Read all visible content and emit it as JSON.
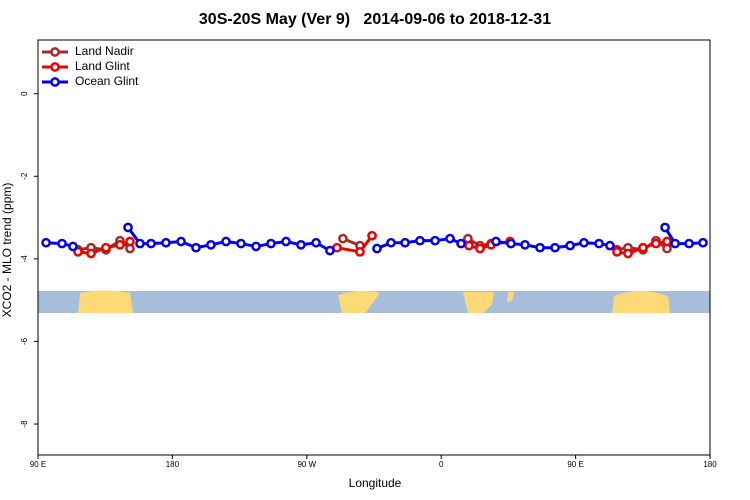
{
  "chart_data": {
    "type": "line",
    "title": "30S-20S May (Ver 9)   2014-09-06 to 2018-12-31",
    "xlabel": "Longitude",
    "ylabel": "XCO2 - MLO trend (ppm)",
    "xlim": [
      90,
      540
    ],
    "ylim": [
      -8.75,
      1.3
    ],
    "xticks": [
      {
        "value": 90,
        "label": "90 E"
      },
      180,
      {
        "value": 270,
        "label": "90 W"
      },
      {
        "value": 360,
        "label": "0"
      },
      {
        "value": 450,
        "label": "90 E"
      },
      {
        "value": 540,
        "label": "180"
      }
    ],
    "yticks": [
      -8,
      -6,
      -4,
      -2,
      0
    ],
    "legend": "top-left",
    "series": [
      {
        "name": "Land Nadir",
        "color": "#a52a2a",
        "x": [
          116.8,
          125.5,
          135.5,
          144.9,
          151.6,
          null,
          294.2,
          305.6,
          null,
          377.9,
          386.0,
          393.4,
          null,
          477.7,
          485.1,
          495.1,
          503.8,
          511.2
        ],
        "values": [
          -3.78,
          -3.73,
          -3.78,
          -3.56,
          -3.75,
          null,
          -3.51,
          -3.68,
          null,
          -3.51,
          -3.68,
          -3.63,
          null,
          -3.78,
          -3.73,
          -3.78,
          -3.56,
          -3.75
        ]
      },
      {
        "name": "Land Glint",
        "color": "#ee0000",
        "x": [
          116.8,
          125.5,
          135.5,
          144.9,
          151.6,
          null,
          290.2,
          305.6,
          313.7,
          null,
          378.6,
          386.0,
          393.4,
          406.1,
          null,
          477.7,
          485.1,
          495.1,
          503.8,
          511.2
        ],
        "values": [
          -3.83,
          -3.87,
          -3.73,
          -3.66,
          -3.58,
          null,
          -3.73,
          -3.83,
          -3.44,
          null,
          -3.68,
          -3.75,
          -3.66,
          -3.58,
          null,
          -3.83,
          -3.87,
          -3.73,
          -3.63,
          -3.58
        ]
      },
      {
        "name": "Ocean Glint",
        "color": "#0000ee",
        "x": [
          95.4,
          106.1,
          113.4,
          null,
          150.3,
          158.3,
          165.7,
          175.7,
          185.8,
          195.8,
          205.8,
          215.9,
          225.9,
          236.0,
          246.0,
          256.1,
          266.1,
          276.2,
          285.5,
          null,
          317.0,
          326.4,
          335.8,
          345.8,
          355.9,
          365.9,
          373.3,
          null,
          396.7,
          406.7,
          416.1,
          426.2,
          436.2,
          446.3,
          455.6,
          465.7,
          473.0,
          null,
          509.9,
          516.6,
          526.0,
          535.3
        ],
        "values": [
          -3.61,
          -3.63,
          -3.7,
          null,
          -3.24,
          -3.63,
          -3.63,
          -3.61,
          -3.58,
          -3.73,
          -3.66,
          -3.58,
          -3.63,
          -3.7,
          -3.63,
          -3.58,
          -3.66,
          -3.61,
          -3.8,
          null,
          -3.75,
          -3.61,
          -3.61,
          -3.56,
          -3.56,
          -3.51,
          -3.63,
          null,
          -3.58,
          -3.63,
          -3.66,
          -3.73,
          -3.73,
          -3.68,
          -3.61,
          -3.63,
          -3.68,
          null,
          -3.24,
          -3.63,
          -3.63,
          -3.61
        ]
      }
    ]
  }
}
